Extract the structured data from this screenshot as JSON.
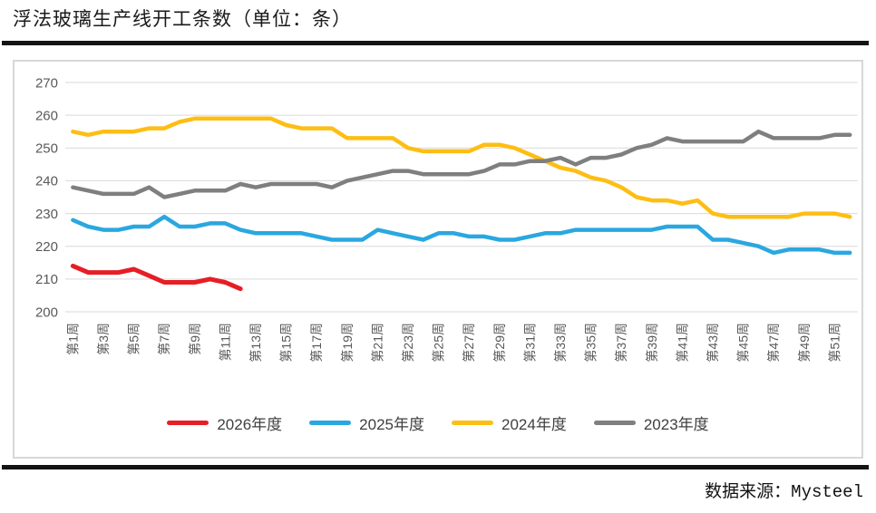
{
  "page": {
    "title": "浮法玻璃生产线开工条数（单位：条）",
    "source": "数据来源：Mysteel"
  },
  "chart_data": {
    "type": "line",
    "title": "浮法玻璃生产线开工条数（单位：条）",
    "x_axis": "周 (week of year)",
    "x_range": [
      1,
      52
    ],
    "x_tick_weeks": [
      1,
      3,
      5,
      7,
      9,
      11,
      13,
      15,
      17,
      19,
      21,
      23,
      25,
      27,
      29,
      31,
      33,
      35,
      37,
      39,
      41,
      43,
      45,
      47,
      49,
      51
    ],
    "x_tick_labels": [
      "第1周",
      "第3周",
      "第5周",
      "第7周",
      "第9周",
      "第11周",
      "第13周",
      "第15周",
      "第17周",
      "第19周",
      "第21周",
      "第23周",
      "第25周",
      "第27周",
      "第29周",
      "第31周",
      "第33周",
      "第35周",
      "第37周",
      "第39周",
      "第41周",
      "第43周",
      "第45周",
      "第47周",
      "第49周",
      "第51周"
    ],
    "ylim": [
      200,
      270
    ],
    "y_ticks": [
      270,
      260,
      250,
      240,
      230,
      220,
      210,
      200
    ],
    "grid": "horizontal",
    "legend_position": "bottom",
    "colors": {
      "red": "#e61e25",
      "blue": "#2aa7e0",
      "yellow": "#fdbe14",
      "gray": "#7f7f7f",
      "gridline": "#d9d9d9",
      "tick_text": "#595959"
    },
    "series": [
      {
        "name": "2026年度",
        "color": "#e61e25",
        "start_week": 1,
        "values": [
          214,
          212,
          212,
          212,
          213,
          211,
          209,
          209,
          209,
          210,
          209,
          207
        ]
      },
      {
        "name": "2025年度",
        "color": "#2aa7e0",
        "start_week": 1,
        "values": [
          228,
          226,
          225,
          225,
          226,
          226,
          229,
          226,
          226,
          227,
          227,
          225,
          224,
          224,
          224,
          224,
          223,
          222,
          222,
          222,
          225,
          224,
          223,
          222,
          224,
          224,
          223,
          223,
          222,
          222,
          223,
          224,
          224,
          225,
          225,
          225,
          225,
          225,
          225,
          226,
          226,
          226,
          222,
          222,
          221,
          220,
          218,
          219,
          219,
          219,
          218,
          218
        ]
      },
      {
        "name": "2024年度",
        "color": "#fdbe14",
        "start_week": 1,
        "values": [
          255,
          254,
          255,
          255,
          255,
          256,
          256,
          258,
          259,
          259,
          259,
          259,
          259,
          259,
          257,
          256,
          256,
          256,
          253,
          253,
          253,
          253,
          250,
          249,
          249,
          249,
          249,
          251,
          251,
          250,
          248,
          246,
          244,
          243,
          241,
          240,
          238,
          235,
          234,
          234,
          233,
          234,
          230,
          229,
          229,
          229,
          229,
          229,
          230,
          230,
          230,
          229
        ]
      },
      {
        "name": "2023年度",
        "color": "#7f7f7f",
        "start_week": 1,
        "values": [
          238,
          237,
          236,
          236,
          236,
          238,
          235,
          236,
          237,
          237,
          237,
          239,
          238,
          239,
          239,
          239,
          239,
          238,
          240,
          241,
          242,
          243,
          243,
          242,
          242,
          242,
          242,
          243,
          245,
          245,
          246,
          246,
          247,
          245,
          247,
          247,
          248,
          250,
          251,
          253,
          252,
          252,
          252,
          252,
          252,
          255,
          253,
          253,
          253,
          253,
          254,
          254
        ]
      }
    ]
  }
}
